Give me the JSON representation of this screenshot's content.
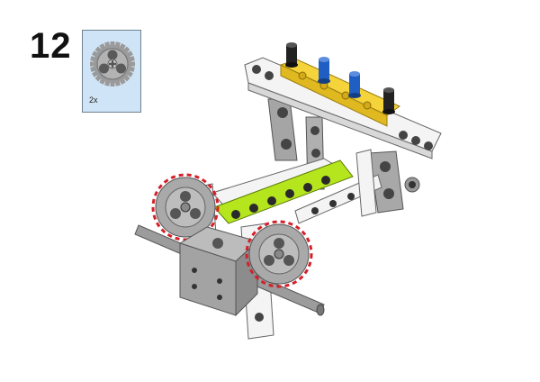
{
  "step": {
    "number": "12"
  },
  "parts_callout": {
    "items": [
      {
        "part": "gear-24-tooth-icon",
        "quantity": "2x",
        "color": "#8f8f8f"
      }
    ]
  },
  "colors": {
    "background": "#ffffff",
    "callout_background": "#cfe5f7",
    "beam_white": "#f4f4f4",
    "beam_yellow": "#f5d33a",
    "beam_lime": "#b5e61d",
    "pin_blue": "#1f5fc4",
    "pin_black": "#222222",
    "gray_part": "#a9a9a9",
    "highlight_red": "#d4202a"
  }
}
